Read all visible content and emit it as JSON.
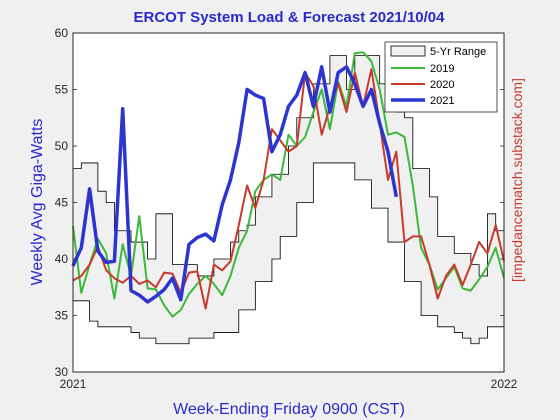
{
  "chart_data": {
    "type": "line",
    "title": "ERCOT System Load & Forecast 2021/10/04",
    "xlabel": "Week-Ending Friday 0900 (CST)",
    "ylabel": "Weekly Avg Giga-Watts",
    "side_label": "[impedancematch.substack.com]",
    "xlim": [
      0,
      52
    ],
    "ylim": [
      30,
      60
    ],
    "x_ticks": [
      {
        "x": 0,
        "label": "2021"
      },
      {
        "x": 52,
        "label": "2022"
      }
    ],
    "y_ticks": [
      30,
      35,
      40,
      45,
      50,
      55,
      60
    ],
    "grid": false,
    "legend_position": "top-right",
    "range": {
      "name": "5-Yr Range",
      "color": "#f0f0f0",
      "weeks": [
        0,
        1,
        2,
        3,
        4,
        5,
        6,
        7,
        8,
        9,
        10,
        11,
        12,
        13,
        14,
        15,
        16,
        17,
        18,
        19,
        20,
        21,
        22,
        23,
        24,
        25,
        26,
        27,
        28,
        29,
        30,
        31,
        32,
        33,
        34,
        35,
        36,
        37,
        38,
        39,
        40,
        41,
        42,
        43,
        44,
        45,
        46,
        47,
        48,
        49,
        50,
        51,
        52
      ],
      "low": [
        36.3,
        36.3,
        34.5,
        34.0,
        34.0,
        34.0,
        34.0,
        33.5,
        33.0,
        33.0,
        32.5,
        32.5,
        32.5,
        32.5,
        33.0,
        33.0,
        33.0,
        33.5,
        33.5,
        33.5,
        35.5,
        35.5,
        38.0,
        38.0,
        40.0,
        42.0,
        42.0,
        45.0,
        45.0,
        48.5,
        48.5,
        48.5,
        48.5,
        48.5,
        47.0,
        47.0,
        44.5,
        44.5,
        41.5,
        41.5,
        38.0,
        38.0,
        35.0,
        35.0,
        34.0,
        34.0,
        33.5,
        33.0,
        32.5,
        33.0,
        34.0,
        34.0,
        34.0
      ],
      "high": [
        48.0,
        48.5,
        48.5,
        46.0,
        45.0,
        42.5,
        42.5,
        41.5,
        41.5,
        40.0,
        44.0,
        44.0,
        39.5,
        39.5,
        39.5,
        38.5,
        38.5,
        40.0,
        40.0,
        41.5,
        42.5,
        43.0,
        45.5,
        45.5,
        47.5,
        47.5,
        50.0,
        52.5,
        52.5,
        55.5,
        55.5,
        58.0,
        58.0,
        55.0,
        58.0,
        58.0,
        58.0,
        55.5,
        55.5,
        53.0,
        52.5,
        48.0,
        48.0,
        45.5,
        42.0,
        42.0,
        40.5,
        40.5,
        39.5,
        38.5,
        44.0,
        42.5,
        41.5
      ]
    },
    "series": [
      {
        "name": "2019",
        "color": "#3cb93c",
        "x": [
          0,
          1,
          2,
          3,
          4,
          5,
          6,
          7,
          8,
          9,
          10,
          11,
          12,
          13,
          14,
          15,
          16,
          17,
          18,
          19,
          20,
          21,
          22,
          23,
          24,
          25,
          26,
          27,
          28,
          29,
          30,
          31,
          32,
          33,
          34,
          35,
          36,
          37,
          38,
          39,
          40,
          41,
          42,
          43,
          44,
          45,
          46,
          47,
          48,
          49,
          50,
          51,
          52
        ],
        "y": [
          42.9,
          37.0,
          39.5,
          41.8,
          40.5,
          36.5,
          41.3,
          38.5,
          43.8,
          37.4,
          37.3,
          35.9,
          34.9,
          35.5,
          36.9,
          37.8,
          38.5,
          37.8,
          36.8,
          38.5,
          41.0,
          42.5,
          46.0,
          47.0,
          47.5,
          47.0,
          51.0,
          50.0,
          50.8,
          53.0,
          55.0,
          51.5,
          55.7,
          53.5,
          58.2,
          58.3,
          57.5,
          55.0,
          51.0,
          51.2,
          50.8,
          46.5,
          41.0,
          39.5,
          37.3,
          38.3,
          39.3,
          37.4,
          37.2,
          38.2,
          39.3,
          41.0,
          38.3
        ]
      },
      {
        "name": "2020",
        "color": "#c83a2e",
        "x": [
          0,
          1,
          2,
          3,
          4,
          5,
          6,
          7,
          8,
          9,
          10,
          11,
          12,
          13,
          14,
          15,
          16,
          17,
          18,
          19,
          20,
          21,
          22,
          23,
          24,
          25,
          26,
          27,
          28,
          29,
          30,
          31,
          32,
          33,
          34,
          35,
          36,
          37,
          38,
          39,
          40,
          41,
          42,
          43,
          44,
          45,
          46,
          47,
          48,
          49,
          50,
          51,
          52
        ],
        "y": [
          38.1,
          38.5,
          39.5,
          41.1,
          39.0,
          38.3,
          37.9,
          38.5,
          37.8,
          38.1,
          37.5,
          38.8,
          38.7,
          37.0,
          38.8,
          38.9,
          35.6,
          39.5,
          39.0,
          39.8,
          43.0,
          46.5,
          44.5,
          47.0,
          51.5,
          50.5,
          49.5,
          50.0,
          56.5,
          55.3,
          51.0,
          53.5,
          55.5,
          53.0,
          56.5,
          53.5,
          56.8,
          52.0,
          47.0,
          49.5,
          41.5,
          42.0,
          42.0,
          39.5,
          36.5,
          38.5,
          39.5,
          37.7,
          39.5,
          41.5,
          40.5,
          43.0,
          39.8
        ]
      },
      {
        "name": "2021",
        "color": "#2c35cf",
        "x": [
          0,
          1,
          2,
          3,
          4,
          5,
          6,
          7,
          8,
          9,
          10,
          11,
          12,
          13,
          14,
          15,
          16,
          17,
          18,
          19,
          20,
          21,
          22,
          23,
          24,
          25,
          26,
          27,
          28,
          29,
          30,
          31,
          32,
          33,
          34,
          35,
          36,
          37,
          38,
          39
        ],
        "y": [
          39.4,
          41.0,
          46.2,
          40.7,
          39.7,
          39.8,
          53.3,
          37.2,
          36.8,
          36.2,
          36.7,
          37.3,
          38.3,
          36.4,
          41.3,
          41.9,
          42.2,
          41.6,
          44.8,
          47.0,
          50.3,
          55.0,
          54.5,
          54.2,
          49.5,
          51.0,
          53.5,
          54.5,
          56.5,
          53.5,
          57.0,
          53.0,
          56.5,
          57.0,
          55.5,
          53.5,
          55.0,
          52.0,
          49.5,
          45.5
        ]
      }
    ]
  }
}
